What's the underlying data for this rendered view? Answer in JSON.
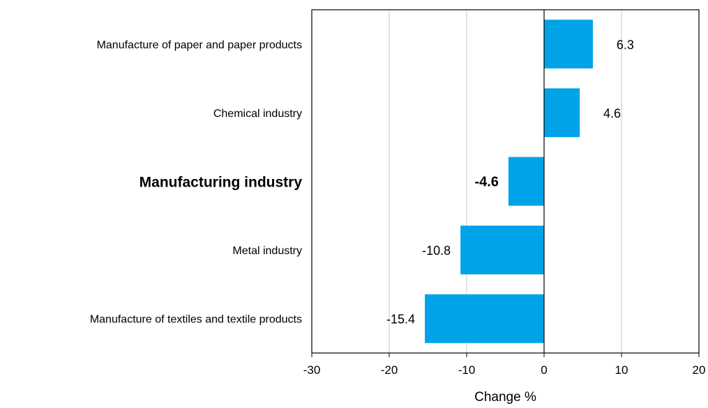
{
  "chart_data": {
    "type": "bar",
    "orientation": "horizontal",
    "categories": [
      "Manufacture of paper and paper products",
      "Chemical industry",
      "Manufacturing industry",
      "Metal industry",
      "Manufacture of textiles and textile products"
    ],
    "values": [
      6.3,
      4.6,
      -4.6,
      -10.8,
      -15.4
    ],
    "value_labels": [
      "6.3",
      "4.6",
      "-4.6",
      "-10.8",
      "-15.4"
    ],
    "highlighted_category": "Manufacturing industry",
    "xlabel": "Change %",
    "xlim": [
      -30,
      20
    ],
    "xticks": [
      -30,
      -20,
      -10,
      0,
      10,
      20
    ],
    "xtick_labels": [
      "-30",
      "-20",
      "-10",
      "0",
      "10",
      "20"
    ],
    "grid": "vertical",
    "legend": "none",
    "colors": {
      "bar": "#00a2e8",
      "grid": "#c8c8c8",
      "axis": "#000000"
    }
  }
}
